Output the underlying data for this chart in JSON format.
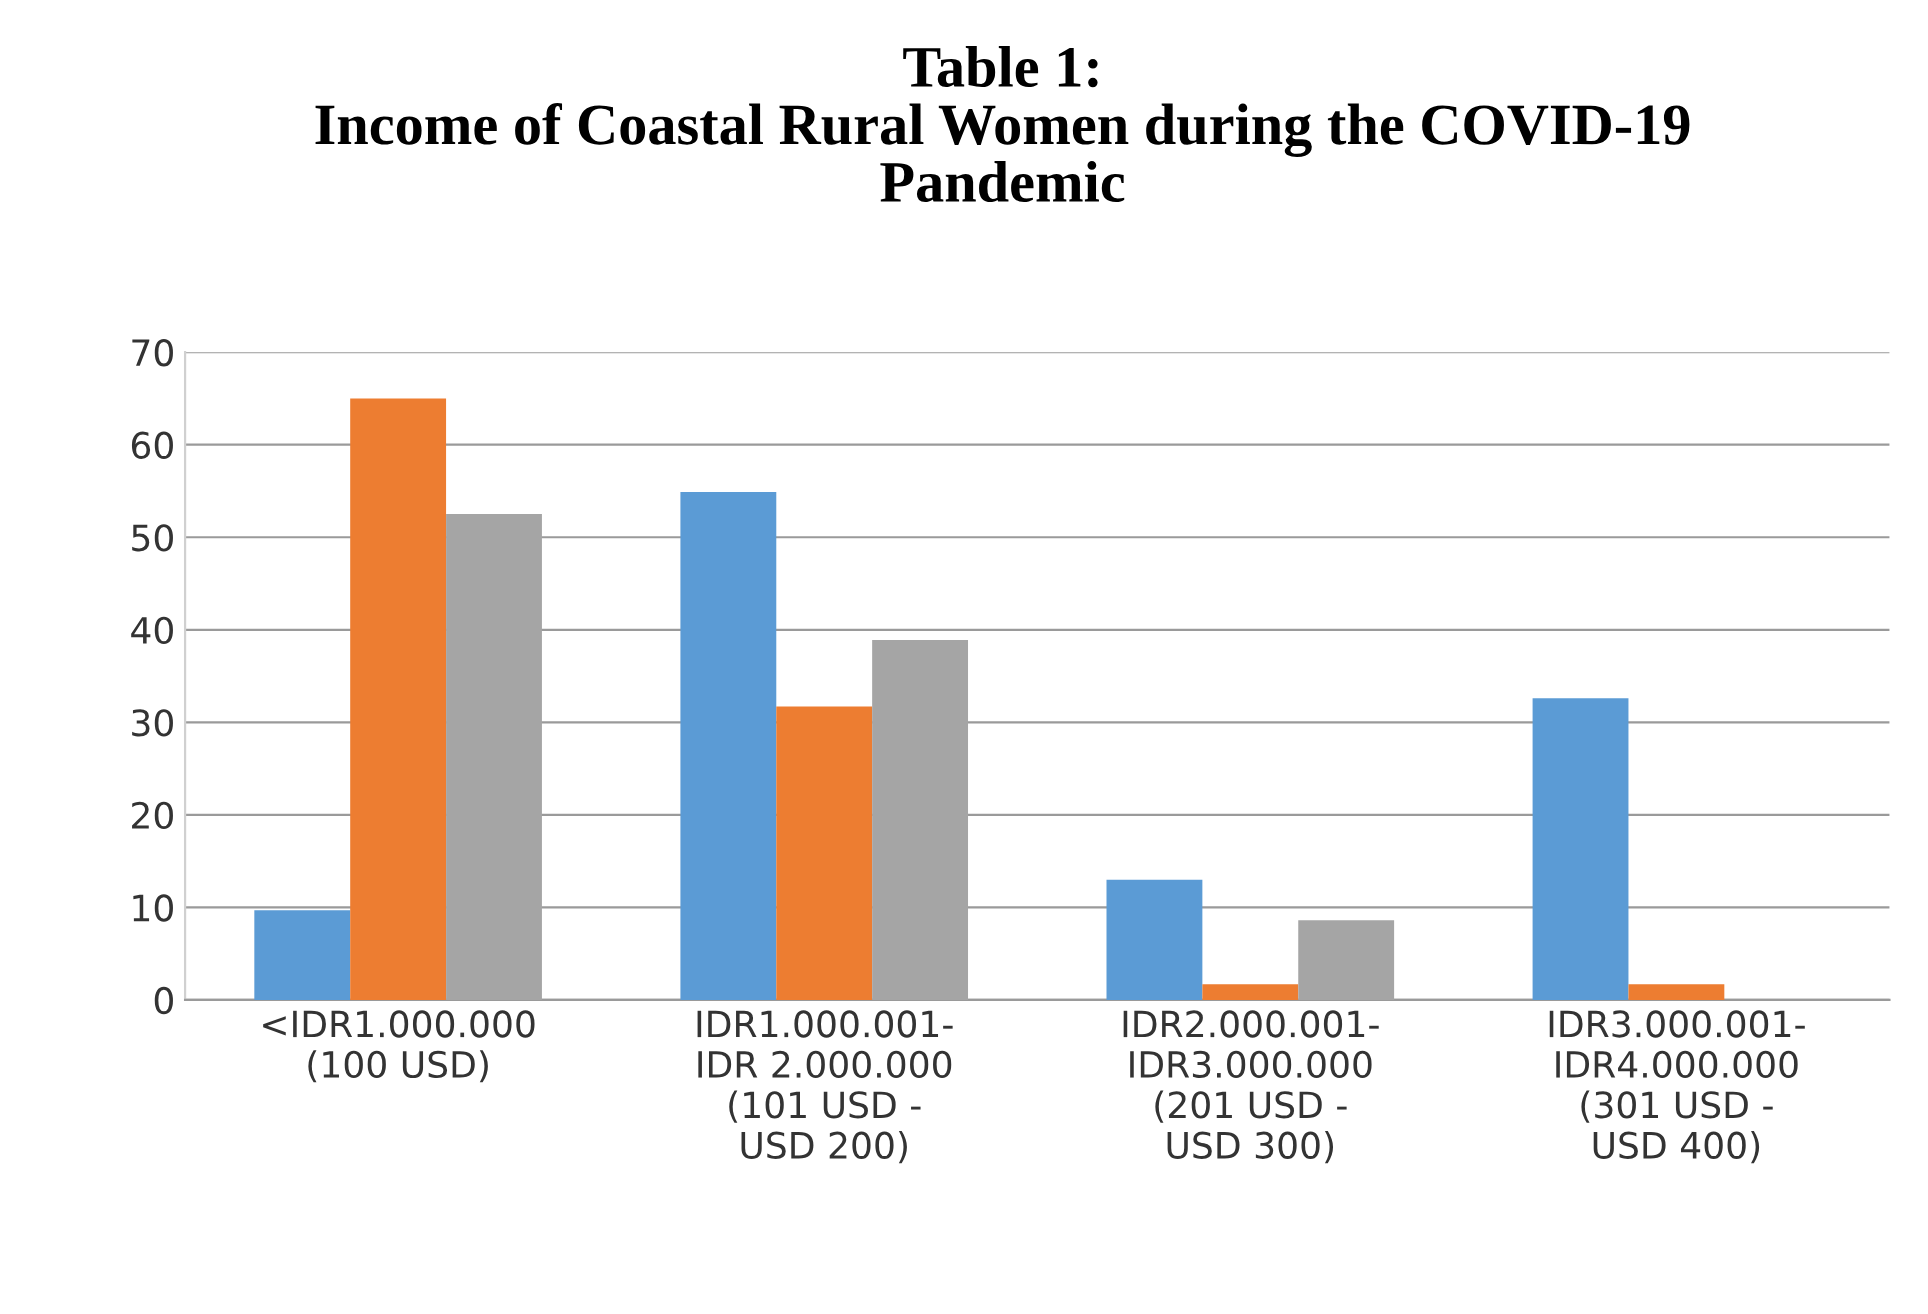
{
  "chart_data": {
    "type": "bar",
    "title": "Table 1:\nIncome of Coastal Rural Women during the COVID-19\nPandemic",
    "categories": [
      "<IDR1.000.000\n(100 USD)",
      "IDR1.000.001-\nIDR 2.000.000\n(101 USD -\nUSD 200)",
      "IDR2.000.001-\nIDR3.000.000\n(201 USD -\nUSD 300)",
      "IDR3.000.001-\nIDR4.000.000\n(301 USD -\nUSD 400)"
    ],
    "series": [
      {
        "color": "#5b9bd5",
        "values": [
          9.7,
          54.9,
          13,
          32.6
        ]
      },
      {
        "color": "#ed7d31",
        "values": [
          65,
          31.7,
          1.7,
          1.7
        ]
      },
      {
        "color": "#a5a5a5",
        "values": [
          52.5,
          38.9,
          8.6,
          0
        ]
      }
    ],
    "ylim": [
      0,
      70
    ],
    "yticks": [
      0,
      10,
      20,
      30,
      40,
      50,
      60,
      70
    ],
    "grid": "y",
    "legend": false
  }
}
